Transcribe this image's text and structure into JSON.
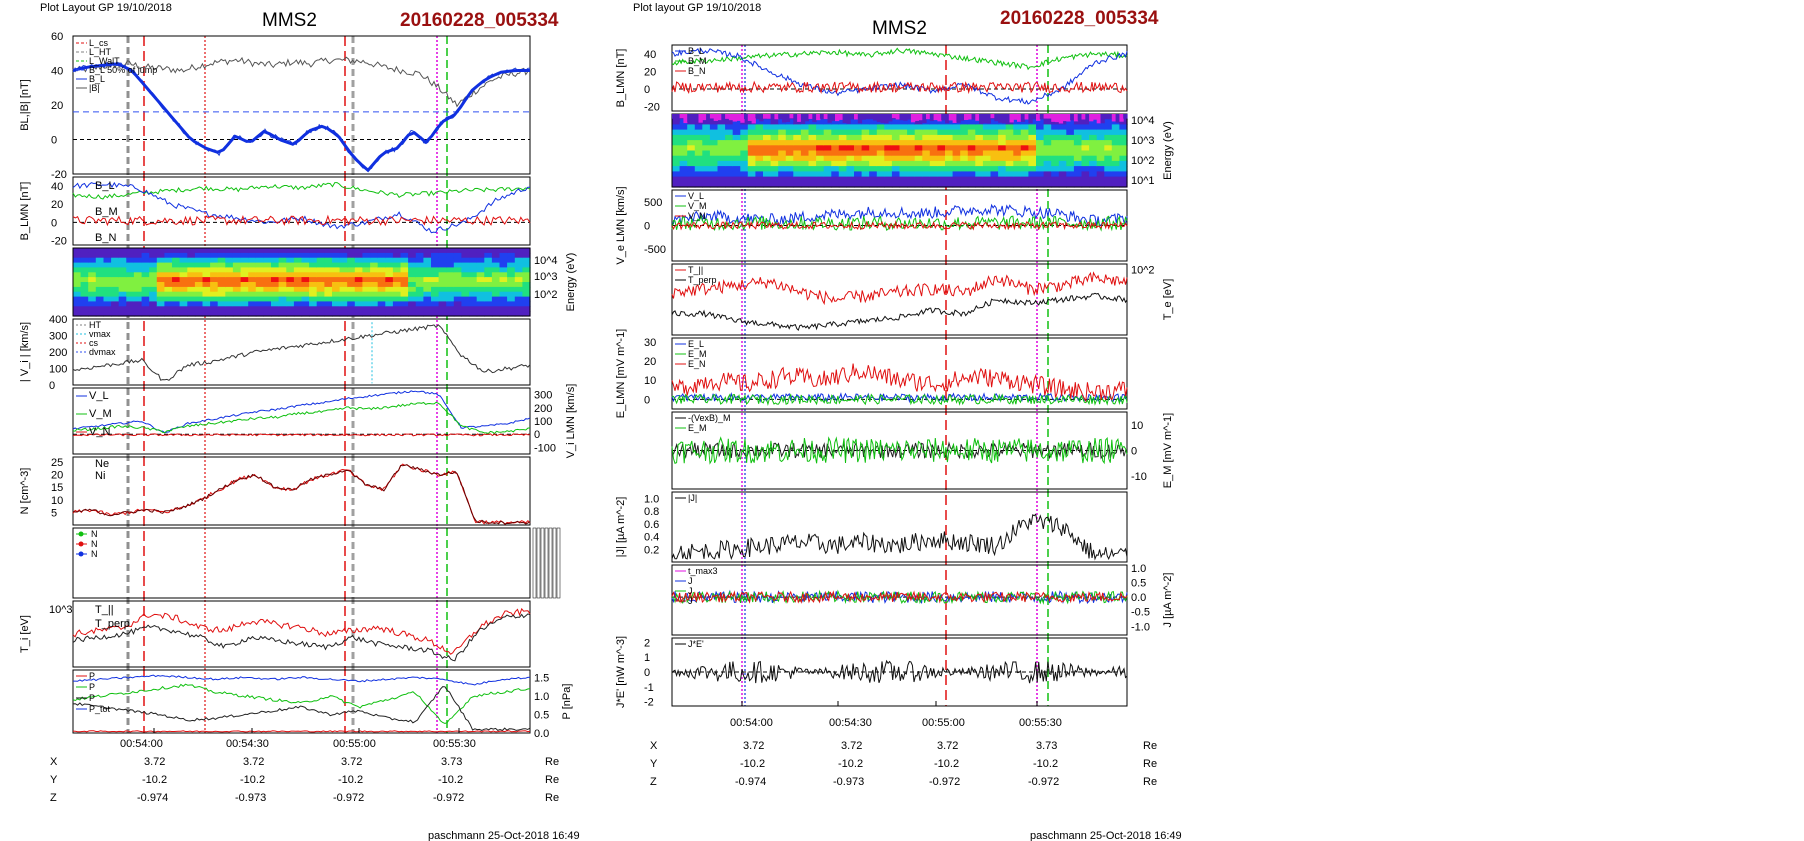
{
  "left": {
    "header": "Plot Layout GP 19/10/2018",
    "spacecraft": "MMS2",
    "event": "20160228_005334",
    "footer": "paschmann 25-Oct-2018 16:49",
    "time_labels": [
      "00:54:00",
      "00:54:30",
      "00:55:00",
      "00:55:30"
    ],
    "ephem": {
      "rows": [
        {
          "label": "X",
          "values": [
            "3.72",
            "3.72",
            "3.72",
            "3.73"
          ],
          "unit": "Re"
        },
        {
          "label": "Y",
          "values": [
            "-10.2",
            "-10.2",
            "-10.2",
            "-10.2"
          ],
          "unit": "Re"
        },
        {
          "label": "Z",
          "values": [
            "-0.974",
            "-0.973",
            "-0.972",
            "-0.972"
          ],
          "unit": "Re"
        }
      ]
    }
  },
  "right": {
    "header": "Plot layout GP 19/10/2018",
    "spacecraft": "MMS2",
    "event": "20160228_005334",
    "footer": "paschmann 25-Oct-2018 16:49",
    "time_labels": [
      "00:54:00",
      "00:54:30",
      "00:55:00",
      "00:55:30"
    ],
    "ephem": {
      "rows": [
        {
          "label": "X",
          "values": [
            "3.72",
            "3.72",
            "3.72",
            "3.73"
          ],
          "unit": "Re"
        },
        {
          "label": "Y",
          "values": [
            "-10.2",
            "-10.2",
            "-10.2",
            "-10.2"
          ],
          "unit": "Re"
        },
        {
          "label": "Z",
          "values": [
            "-0.974",
            "-0.973",
            "-0.972",
            "-0.972"
          ],
          "unit": "Re"
        }
      ]
    }
  },
  "colors": {
    "bl": "#1030e0",
    "green": "#10c010",
    "red": "#e01010",
    "black": "#000000",
    "magenta": "#e010e0",
    "cyan": "#20c0e0",
    "event": "#9a1010"
  },
  "chart_data": [
    {
      "type": "line",
      "title": "MMS2",
      "x": [
        "00:54:00",
        "00:54:30",
        "00:55:00",
        "00:55:30"
      ],
      "panels": [
        {
          "ylabel": "BL,|B| [nT]",
          "ylim": [
            -20,
            60
          ],
          "ticks": [
            "60",
            "40",
            "20",
            "0",
            "-20"
          ],
          "legend": [
            "L_cs",
            "L_HT",
            "L_WalT",
            "B_L 50% of jump",
            "B_L",
            "|B|"
          ]
        },
        {
          "ylabel": "B_LMN [nT]",
          "ylim": [
            -25,
            50
          ],
          "ticks": [
            "40",
            "20",
            "0",
            "-20"
          ],
          "legend": [
            "B_L",
            "B_M",
            "B_N"
          ]
        },
        {
          "ylabel": "Energy (eV)",
          "type": "heatmap",
          "ticks": [
            "10^4",
            "10^3",
            "10^2"
          ]
        },
        {
          "ylabel": "| V_i | [km/s]",
          "ylim": [
            0,
            400
          ],
          "ticks": [
            "400",
            "300",
            "200",
            "100",
            "0"
          ],
          "legend": [
            "HT",
            "vmax",
            "cs",
            "dvmax"
          ]
        },
        {
          "ylabel": "V_i LMN [km/s]",
          "ylim": [
            -150,
            350
          ],
          "ticks": [
            "300",
            "200",
            "100",
            "0",
            "-100"
          ],
          "legend": [
            "V_L",
            "V_M",
            "V_N"
          ]
        },
        {
          "ylabel": "N [cm^-3]",
          "ylim": [
            0,
            27
          ],
          "ticks": [
            "25",
            "20",
            "15",
            "10",
            "5"
          ],
          "legend": [
            "Ne",
            "Ni"
          ]
        },
        {
          "ylabel": "",
          "legend": [
            "N",
            "N",
            "N"
          ]
        },
        {
          "ylabel": "T_i [eV]",
          "ticks": [
            "10^3"
          ],
          "legend": [
            "T_||",
            "T_perp"
          ]
        },
        {
          "ylabel": "P [nPa]",
          "ylim": [
            0,
            1.7
          ],
          "ticks": [
            "1.5",
            "1.0",
            "0.5",
            "0.0"
          ],
          "legend": [
            "P",
            "P",
            "P",
            "P_tot"
          ]
        }
      ]
    },
    {
      "type": "line",
      "title": "MMS2",
      "x": [
        "00:54:00",
        "00:54:30",
        "00:55:00",
        "00:55:30"
      ],
      "panels": [
        {
          "ylabel": "B_LMN [nT]",
          "ylim": [
            -25,
            50
          ],
          "ticks": [
            "40",
            "20",
            "0",
            "-20"
          ],
          "legend": [
            "B_L",
            "B_M",
            "B_N"
          ]
        },
        {
          "ylabel": "Energy (eV)",
          "type": "heatmap",
          "ticks": [
            "10^4",
            "10^3",
            "10^2",
            "10^1"
          ]
        },
        {
          "ylabel": "V_e LMN [km/s]",
          "ylim": [
            -750,
            750
          ],
          "ticks": [
            "500",
            "0",
            "-500"
          ],
          "legend": [
            "V_L",
            "V_M",
            "V_N"
          ]
        },
        {
          "ylabel": "T_e [eV]",
          "ticks": [
            "10^2"
          ],
          "legend": [
            "T_||",
            "T_perp"
          ]
        },
        {
          "ylabel": "E_LMN [mV m^-1]",
          "ylim": [
            -5,
            32
          ],
          "ticks": [
            "30",
            "20",
            "10",
            "0"
          ],
          "legend": [
            "E_L",
            "E_M",
            "E_N"
          ]
        },
        {
          "ylabel": "E_M [mV m^-1]",
          "ylim": [
            -15,
            15
          ],
          "ticks": [
            "10",
            "0",
            "-10"
          ],
          "legend": [
            "-(VexB)_M",
            "E_M"
          ]
        },
        {
          "ylabel": "|J| [µA m^-2]",
          "ylim": [
            0,
            1.1
          ],
          "ticks": [
            "1.0",
            "0.8",
            "0.6",
            "0.4",
            "0.2"
          ],
          "legend": [
            "|J|"
          ]
        },
        {
          "ylabel": "J [µA m^-2]",
          "ylim": [
            -1.3,
            1.1
          ],
          "ticks": [
            "1.0",
            "0.5",
            "0.0",
            "-0.5",
            "-1.0"
          ],
          "legend": [
            "t_max3",
            "J",
            "J",
            "J"
          ]
        },
        {
          "ylabel": "J*E' [nW m^-3]",
          "ylim": [
            -2.3,
            2.3
          ],
          "ticks": [
            "2",
            "1",
            "0",
            "-1",
            "-2"
          ],
          "legend": [
            "J*E'"
          ]
        }
      ]
    }
  ]
}
